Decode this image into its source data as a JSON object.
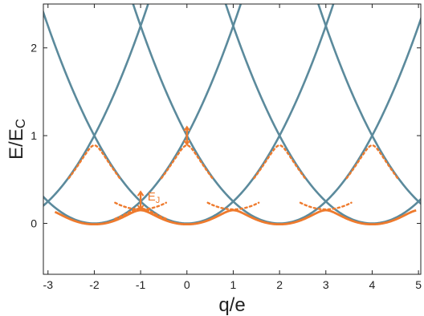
{
  "chart_data": {
    "type": "line",
    "title": "",
    "xlabel": "q/e",
    "ylabel_main": "E/E",
    "ylabel_sub": "C",
    "xlim": [
      -3.1,
      5.05
    ],
    "ylim": [
      -0.58,
      2.5
    ],
    "x_ticks": [
      -3,
      -2,
      -1,
      0,
      1,
      2,
      3,
      4,
      5
    ],
    "x_tick_labels": [
      "-3",
      "-2",
      "-1",
      "0",
      "1",
      "2",
      "3",
      "4",
      "5"
    ],
    "y_ticks": [
      0,
      1,
      2
    ],
    "y_tick_labels": [
      "0",
      "1",
      "2"
    ],
    "grid": false,
    "legend": "none",
    "parabola_centers": [
      -4,
      -2,
      0,
      2,
      4,
      6
    ],
    "parabola_form": "E/E_C = ((q/e) - n)^2 / 4, n even",
    "series": [
      {
        "role": "bare-charging-parabolas",
        "color": "#5b8a9c"
      },
      {
        "role": "band-lowest",
        "color": "#ee7a2d"
      },
      {
        "role": "band-second-dotted",
        "color": "#ee7a2d"
      }
    ],
    "band_params": {
      "ej": 0.2,
      "ej2": 0.22
    },
    "annotations": [
      {
        "text_main": "E",
        "text_sub": "J",
        "x": -0.85,
        "y": 0.26,
        "color": "#ee7a2d"
      }
    ]
  }
}
